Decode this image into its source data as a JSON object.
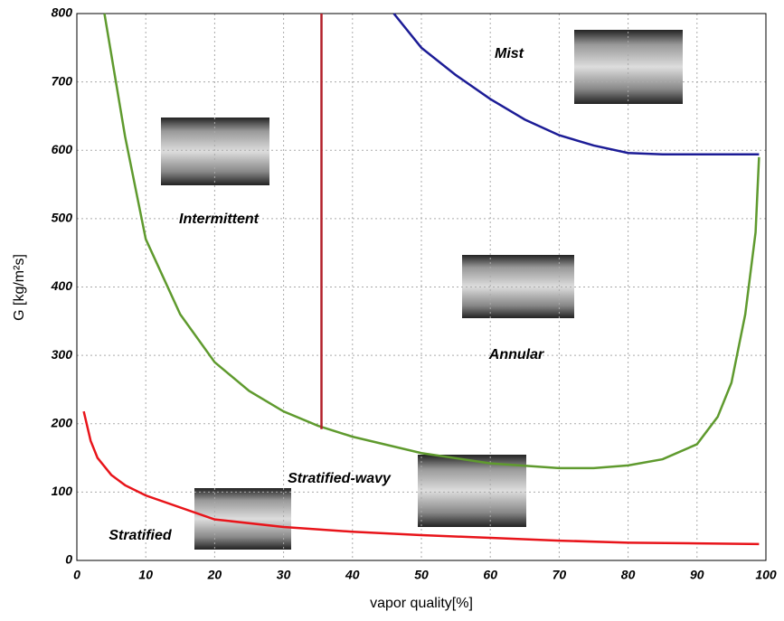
{
  "chart_data": {
    "type": "line",
    "x_label": "vapor quality[%]",
    "y_label": "G [kg/m²s]",
    "xlim": [
      0,
      100
    ],
    "xticks": [
      0,
      10,
      20,
      30,
      40,
      50,
      60,
      70,
      80,
      90,
      100
    ],
    "ylim": [
      0,
      800
    ],
    "yticks": [
      0,
      100,
      200,
      300,
      400,
      500,
      600,
      700,
      800
    ],
    "grid": true,
    "annotations": [
      "Mist",
      "Intermittent",
      "Annular",
      "Stratified-wavy",
      "Stratified"
    ],
    "series": [
      {
        "color": "#e8141a",
        "x": [
          1,
          2,
          3,
          5,
          7,
          10,
          20,
          30,
          40,
          50,
          60,
          70,
          80,
          90,
          99
        ],
        "values": [
          218,
          175,
          150,
          125,
          110,
          95,
          60,
          49,
          42,
          37,
          33,
          29,
          26,
          25,
          24
        ]
      },
      {
        "color": "#5f9a2e",
        "x": [
          4,
          5,
          7,
          10,
          15,
          20,
          25,
          30,
          35,
          40,
          50,
          60,
          70,
          75,
          80,
          85,
          90,
          93,
          95,
          97,
          98.5,
          99
        ],
        "values": [
          800,
          740,
          620,
          470,
          360,
          290,
          248,
          218,
          197,
          181,
          157,
          142,
          135,
          135,
          139,
          148,
          170,
          210,
          260,
          360,
          480,
          590
        ]
      },
      {
        "color": "#b3202a",
        "x": [
          35.5,
          35.5
        ],
        "values": [
          192,
          800
        ]
      },
      {
        "color": "#1c1c96",
        "x": [
          46,
          50,
          55,
          60,
          65,
          70,
          75,
          80,
          85,
          99
        ],
        "values": [
          800,
          750,
          710,
          675,
          645,
          622,
          607,
          596,
          594,
          594
        ]
      }
    ]
  }
}
